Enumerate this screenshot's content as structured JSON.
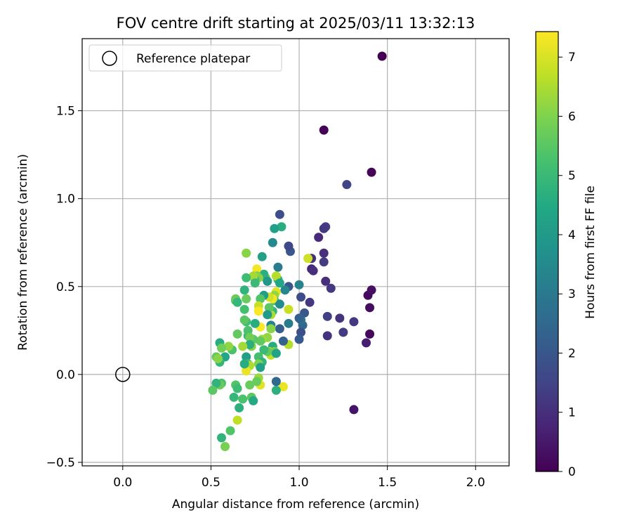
{
  "chart_data": {
    "type": "scatter",
    "title": "FOV centre drift starting at 2025/03/11 13:32:13",
    "xlabel": "Angular distance from reference (arcmin)",
    "ylabel": "Rotation from reference (arcmin)",
    "xlim": [
      -0.23,
      2.19
    ],
    "ylim": [
      -0.52,
      1.91
    ],
    "xticks": [
      0.0,
      0.5,
      1.0,
      1.5,
      2.0
    ],
    "xtick_labels": [
      "0.0",
      "0.5",
      "1.0",
      "1.5",
      "2.0"
    ],
    "yticks": [
      -0.5,
      0.0,
      0.5,
      1.0,
      1.5
    ],
    "ytick_labels": [
      "−0.5",
      "0.0",
      "0.5",
      "1.0",
      "1.5"
    ],
    "grid": true,
    "legend": {
      "placement": "top-left",
      "entries": [
        "Reference platepar"
      ]
    },
    "reference_point": {
      "x": 0.0,
      "y": 0.0
    },
    "colorbar": {
      "label": "Hours from first FF file",
      "min": 0,
      "max": 7.43,
      "ticks": [
        0,
        1,
        2,
        3,
        4,
        5,
        6,
        7
      ],
      "colormap": "viridis"
    },
    "points": [
      {
        "x": 1.47,
        "y": 1.81,
        "c": 0.0
      },
      {
        "x": 1.14,
        "y": 1.39,
        "c": 0.05
      },
      {
        "x": 1.41,
        "y": 1.15,
        "c": 0.1
      },
      {
        "x": 1.27,
        "y": 1.08,
        "c": 1.5
      },
      {
        "x": 1.39,
        "y": 0.45,
        "c": 0.2
      },
      {
        "x": 1.41,
        "y": 0.48,
        "c": 0.3
      },
      {
        "x": 1.4,
        "y": 0.38,
        "c": 0.25
      },
      {
        "x": 1.4,
        "y": 0.23,
        "c": 0.15
      },
      {
        "x": 1.38,
        "y": 0.18,
        "c": 0.6
      },
      {
        "x": 1.31,
        "y": -0.2,
        "c": 0.4
      },
      {
        "x": 1.31,
        "y": 0.3,
        "c": 1.2
      },
      {
        "x": 1.25,
        "y": 0.24,
        "c": 1.3
      },
      {
        "x": 1.23,
        "y": 0.32,
        "c": 1.1
      },
      {
        "x": 1.18,
        "y": 0.49,
        "c": 1.2
      },
      {
        "x": 1.15,
        "y": 0.53,
        "c": 1.0
      },
      {
        "x": 1.15,
        "y": 0.84,
        "c": 1.4
      },
      {
        "x": 1.14,
        "y": 0.83,
        "c": 1.2
      },
      {
        "x": 1.14,
        "y": 0.69,
        "c": 1.0
      },
      {
        "x": 1.14,
        "y": 0.64,
        "c": 1.3
      },
      {
        "x": 1.16,
        "y": 0.33,
        "c": 1.4
      },
      {
        "x": 1.16,
        "y": 0.22,
        "c": 1.1
      },
      {
        "x": 1.11,
        "y": 0.78,
        "c": 0.9
      },
      {
        "x": 1.07,
        "y": 0.66,
        "c": 1.0
      },
      {
        "x": 1.07,
        "y": 0.6,
        "c": 0.8
      },
      {
        "x": 1.08,
        "y": 0.59,
        "c": 1.0
      },
      {
        "x": 1.06,
        "y": 0.41,
        "c": 1.2
      },
      {
        "x": 1.05,
        "y": 0.66,
        "c": 6.9
      },
      {
        "x": 1.03,
        "y": 0.35,
        "c": 2.0
      },
      {
        "x": 1.01,
        "y": 0.44,
        "c": 1.7
      },
      {
        "x": 1.02,
        "y": 0.28,
        "c": 2.5
      },
      {
        "x": 1.0,
        "y": 0.51,
        "c": 3.3
      },
      {
        "x": 1.01,
        "y": 0.31,
        "c": 2.8
      },
      {
        "x": 1.0,
        "y": 0.32,
        "c": 2.3
      },
      {
        "x": 1.01,
        "y": 0.24,
        "c": 1.8
      },
      {
        "x": 1.0,
        "y": 0.2,
        "c": 2.1
      },
      {
        "x": 0.95,
        "y": 0.7,
        "c": 2.0
      },
      {
        "x": 0.94,
        "y": 0.73,
        "c": 1.6
      },
      {
        "x": 0.94,
        "y": 0.5,
        "c": 2.0
      },
      {
        "x": 0.94,
        "y": 0.37,
        "c": 6.8
      },
      {
        "x": 0.94,
        "y": 0.29,
        "c": 3.1
      },
      {
        "x": 0.94,
        "y": 0.17,
        "c": 6.6
      },
      {
        "x": 0.91,
        "y": 0.19,
        "c": 2.3
      },
      {
        "x": 0.92,
        "y": 0.48,
        "c": 3.4
      },
      {
        "x": 0.89,
        "y": 0.91,
        "c": 1.8
      },
      {
        "x": 0.9,
        "y": 0.84,
        "c": 4.6
      },
      {
        "x": 0.86,
        "y": 0.83,
        "c": 4.2
      },
      {
        "x": 0.85,
        "y": 0.75,
        "c": 3.5
      },
      {
        "x": 0.88,
        "y": 0.61,
        "c": 3.1
      },
      {
        "x": 0.88,
        "y": 0.54,
        "c": 4.8
      },
      {
        "x": 0.87,
        "y": 0.56,
        "c": 6.6
      },
      {
        "x": 0.89,
        "y": 0.52,
        "c": 4.4
      },
      {
        "x": 0.87,
        "y": 0.47,
        "c": 7.1
      },
      {
        "x": 0.86,
        "y": 0.45,
        "c": 6.2
      },
      {
        "x": 0.86,
        "y": 0.42,
        "c": 5.2
      },
      {
        "x": 0.89,
        "y": 0.4,
        "c": 3.6
      },
      {
        "x": 0.85,
        "y": 0.43,
        "c": 7.3
      },
      {
        "x": 0.83,
        "y": 0.44,
        "c": 6.9
      },
      {
        "x": 0.85,
        "y": 0.36,
        "c": 4.9
      },
      {
        "x": 0.84,
        "y": 0.34,
        "c": 6.5
      },
      {
        "x": 0.83,
        "y": 0.38,
        "c": 5.5
      },
      {
        "x": 0.82,
        "y": 0.34,
        "c": 4.0
      },
      {
        "x": 0.84,
        "y": 0.28,
        "c": 3.2
      },
      {
        "x": 0.89,
        "y": 0.26,
        "c": 2.2
      },
      {
        "x": 0.84,
        "y": 0.26,
        "c": 6.1
      },
      {
        "x": 0.82,
        "y": 0.21,
        "c": 6.2
      },
      {
        "x": 0.85,
        "y": 0.16,
        "c": 4.6
      },
      {
        "x": 0.83,
        "y": 0.13,
        "c": 7.0
      },
      {
        "x": 0.84,
        "y": 0.11,
        "c": 6.7
      },
      {
        "x": 0.86,
        "y": 0.13,
        "c": 5.9
      },
      {
        "x": 0.87,
        "y": 0.12,
        "c": 4.3
      },
      {
        "x": 0.82,
        "y": 0.13,
        "c": 5.6
      },
      {
        "x": 0.8,
        "y": 0.14,
        "c": 5.0
      },
      {
        "x": 0.81,
        "y": 0.55,
        "c": 5.7
      },
      {
        "x": 0.8,
        "y": 0.57,
        "c": 4.7
      },
      {
        "x": 0.82,
        "y": 0.53,
        "c": 3.9
      },
      {
        "x": 0.8,
        "y": 0.45,
        "c": 4.1
      },
      {
        "x": 0.78,
        "y": 0.43,
        "c": 5.4
      },
      {
        "x": 0.77,
        "y": 0.39,
        "c": 6.8
      },
      {
        "x": 0.77,
        "y": 0.36,
        "c": 7.4
      },
      {
        "x": 0.79,
        "y": 0.67,
        "c": 4.2
      },
      {
        "x": 0.76,
        "y": 0.6,
        "c": 7.3
      },
      {
        "x": 0.76,
        "y": 0.56,
        "c": 5.9
      },
      {
        "x": 0.77,
        "y": 0.55,
        "c": 6.1
      },
      {
        "x": 0.75,
        "y": 0.54,
        "c": 5.3
      },
      {
        "x": 0.74,
        "y": 0.56,
        "c": 6.4
      },
      {
        "x": 0.75,
        "y": 0.52,
        "c": 5.0
      },
      {
        "x": 0.78,
        "y": 0.27,
        "c": 7.4
      },
      {
        "x": 0.79,
        "y": 0.2,
        "c": 6.3
      },
      {
        "x": 0.78,
        "y": 0.19,
        "c": 5.6
      },
      {
        "x": 0.77,
        "y": 0.1,
        "c": 5.2
      },
      {
        "x": 0.79,
        "y": 0.07,
        "c": 4.8
      },
      {
        "x": 0.77,
        "y": 0.06,
        "c": 6.0
      },
      {
        "x": 0.78,
        "y": 0.04,
        "c": 4.2
      },
      {
        "x": 0.77,
        "y": -0.02,
        "c": 6.3
      },
      {
        "x": 0.78,
        "y": -0.06,
        "c": 7.1
      },
      {
        "x": 0.76,
        "y": -0.04,
        "c": 5.7
      },
      {
        "x": 0.75,
        "y": 0.29,
        "c": 4.6
      },
      {
        "x": 0.74,
        "y": 0.2,
        "c": 5.5
      },
      {
        "x": 0.73,
        "y": 0.16,
        "c": 6.1
      },
      {
        "x": 0.71,
        "y": 0.22,
        "c": 4.9
      },
      {
        "x": 0.71,
        "y": 0.25,
        "c": 5.3
      },
      {
        "x": 0.72,
        "y": 0.21,
        "c": 5.8
      },
      {
        "x": 0.7,
        "y": 0.3,
        "c": 5.1
      },
      {
        "x": 0.72,
        "y": 0.17,
        "c": 4.7
      },
      {
        "x": 0.7,
        "y": 0.1,
        "c": 4.2
      },
      {
        "x": 0.71,
        "y": 0.06,
        "c": 5.2
      },
      {
        "x": 0.72,
        "y": 0.05,
        "c": 6.5
      },
      {
        "x": 0.7,
        "y": 0.02,
        "c": 7.2
      },
      {
        "x": 0.69,
        "y": 0.06,
        "c": 4.6
      },
      {
        "x": 0.72,
        "y": -0.06,
        "c": 5.7
      },
      {
        "x": 0.73,
        "y": -0.13,
        "c": 5.5
      },
      {
        "x": 0.74,
        "y": -0.15,
        "c": 4.5
      },
      {
        "x": 0.69,
        "y": 0.48,
        "c": 4.8
      },
      {
        "x": 0.7,
        "y": 0.55,
        "c": 5.1
      },
      {
        "x": 0.7,
        "y": 0.43,
        "c": 5.7
      },
      {
        "x": 0.7,
        "y": 0.69,
        "c": 6.1
      },
      {
        "x": 0.69,
        "y": 0.37,
        "c": 5.2
      },
      {
        "x": 0.69,
        "y": 0.31,
        "c": 5.5
      },
      {
        "x": 0.68,
        "y": 0.16,
        "c": 6.4
      },
      {
        "x": 0.65,
        "y": 0.23,
        "c": 5.6
      },
      {
        "x": 0.64,
        "y": 0.42,
        "c": 5.1
      },
      {
        "x": 0.64,
        "y": 0.43,
        "c": 5.7
      },
      {
        "x": 0.65,
        "y": 0.41,
        "c": 4.9
      },
      {
        "x": 0.68,
        "y": -0.14,
        "c": 5.3
      },
      {
        "x": 0.64,
        "y": -0.06,
        "c": 5.4
      },
      {
        "x": 0.65,
        "y": -0.08,
        "c": 5.1
      },
      {
        "x": 0.66,
        "y": -0.19,
        "c": 4.7
      },
      {
        "x": 0.65,
        "y": -0.26,
        "c": 6.7
      },
      {
        "x": 0.63,
        "y": -0.13,
        "c": 4.9
      },
      {
        "x": 0.61,
        "y": -0.32,
        "c": 5.4
      },
      {
        "x": 0.58,
        "y": -0.41,
        "c": 5.9
      },
      {
        "x": 0.56,
        "y": -0.36,
        "c": 4.8
      },
      {
        "x": 0.62,
        "y": 0.14,
        "c": 5.3
      },
      {
        "x": 0.6,
        "y": 0.16,
        "c": 6.2
      },
      {
        "x": 0.58,
        "y": 0.1,
        "c": 4.4
      },
      {
        "x": 0.55,
        "y": 0.18,
        "c": 4.6
      },
      {
        "x": 0.56,
        "y": 0.15,
        "c": 5.8
      },
      {
        "x": 0.55,
        "y": 0.07,
        "c": 4.9
      },
      {
        "x": 0.53,
        "y": 0.1,
        "c": 5.6
      },
      {
        "x": 0.54,
        "y": 0.09,
        "c": 6.1
      },
      {
        "x": 0.56,
        "y": -0.05,
        "c": 5.3
      },
      {
        "x": 0.55,
        "y": -0.06,
        "c": 5.7
      },
      {
        "x": 0.53,
        "y": -0.05,
        "c": 4.8
      },
      {
        "x": 0.51,
        "y": -0.09,
        "c": 5.5
      },
      {
        "x": 0.91,
        "y": -0.07,
        "c": 7.2
      },
      {
        "x": 0.87,
        "y": -0.09,
        "c": 4.7
      },
      {
        "x": 0.87,
        "y": -0.04,
        "c": 2.5
      }
    ]
  }
}
